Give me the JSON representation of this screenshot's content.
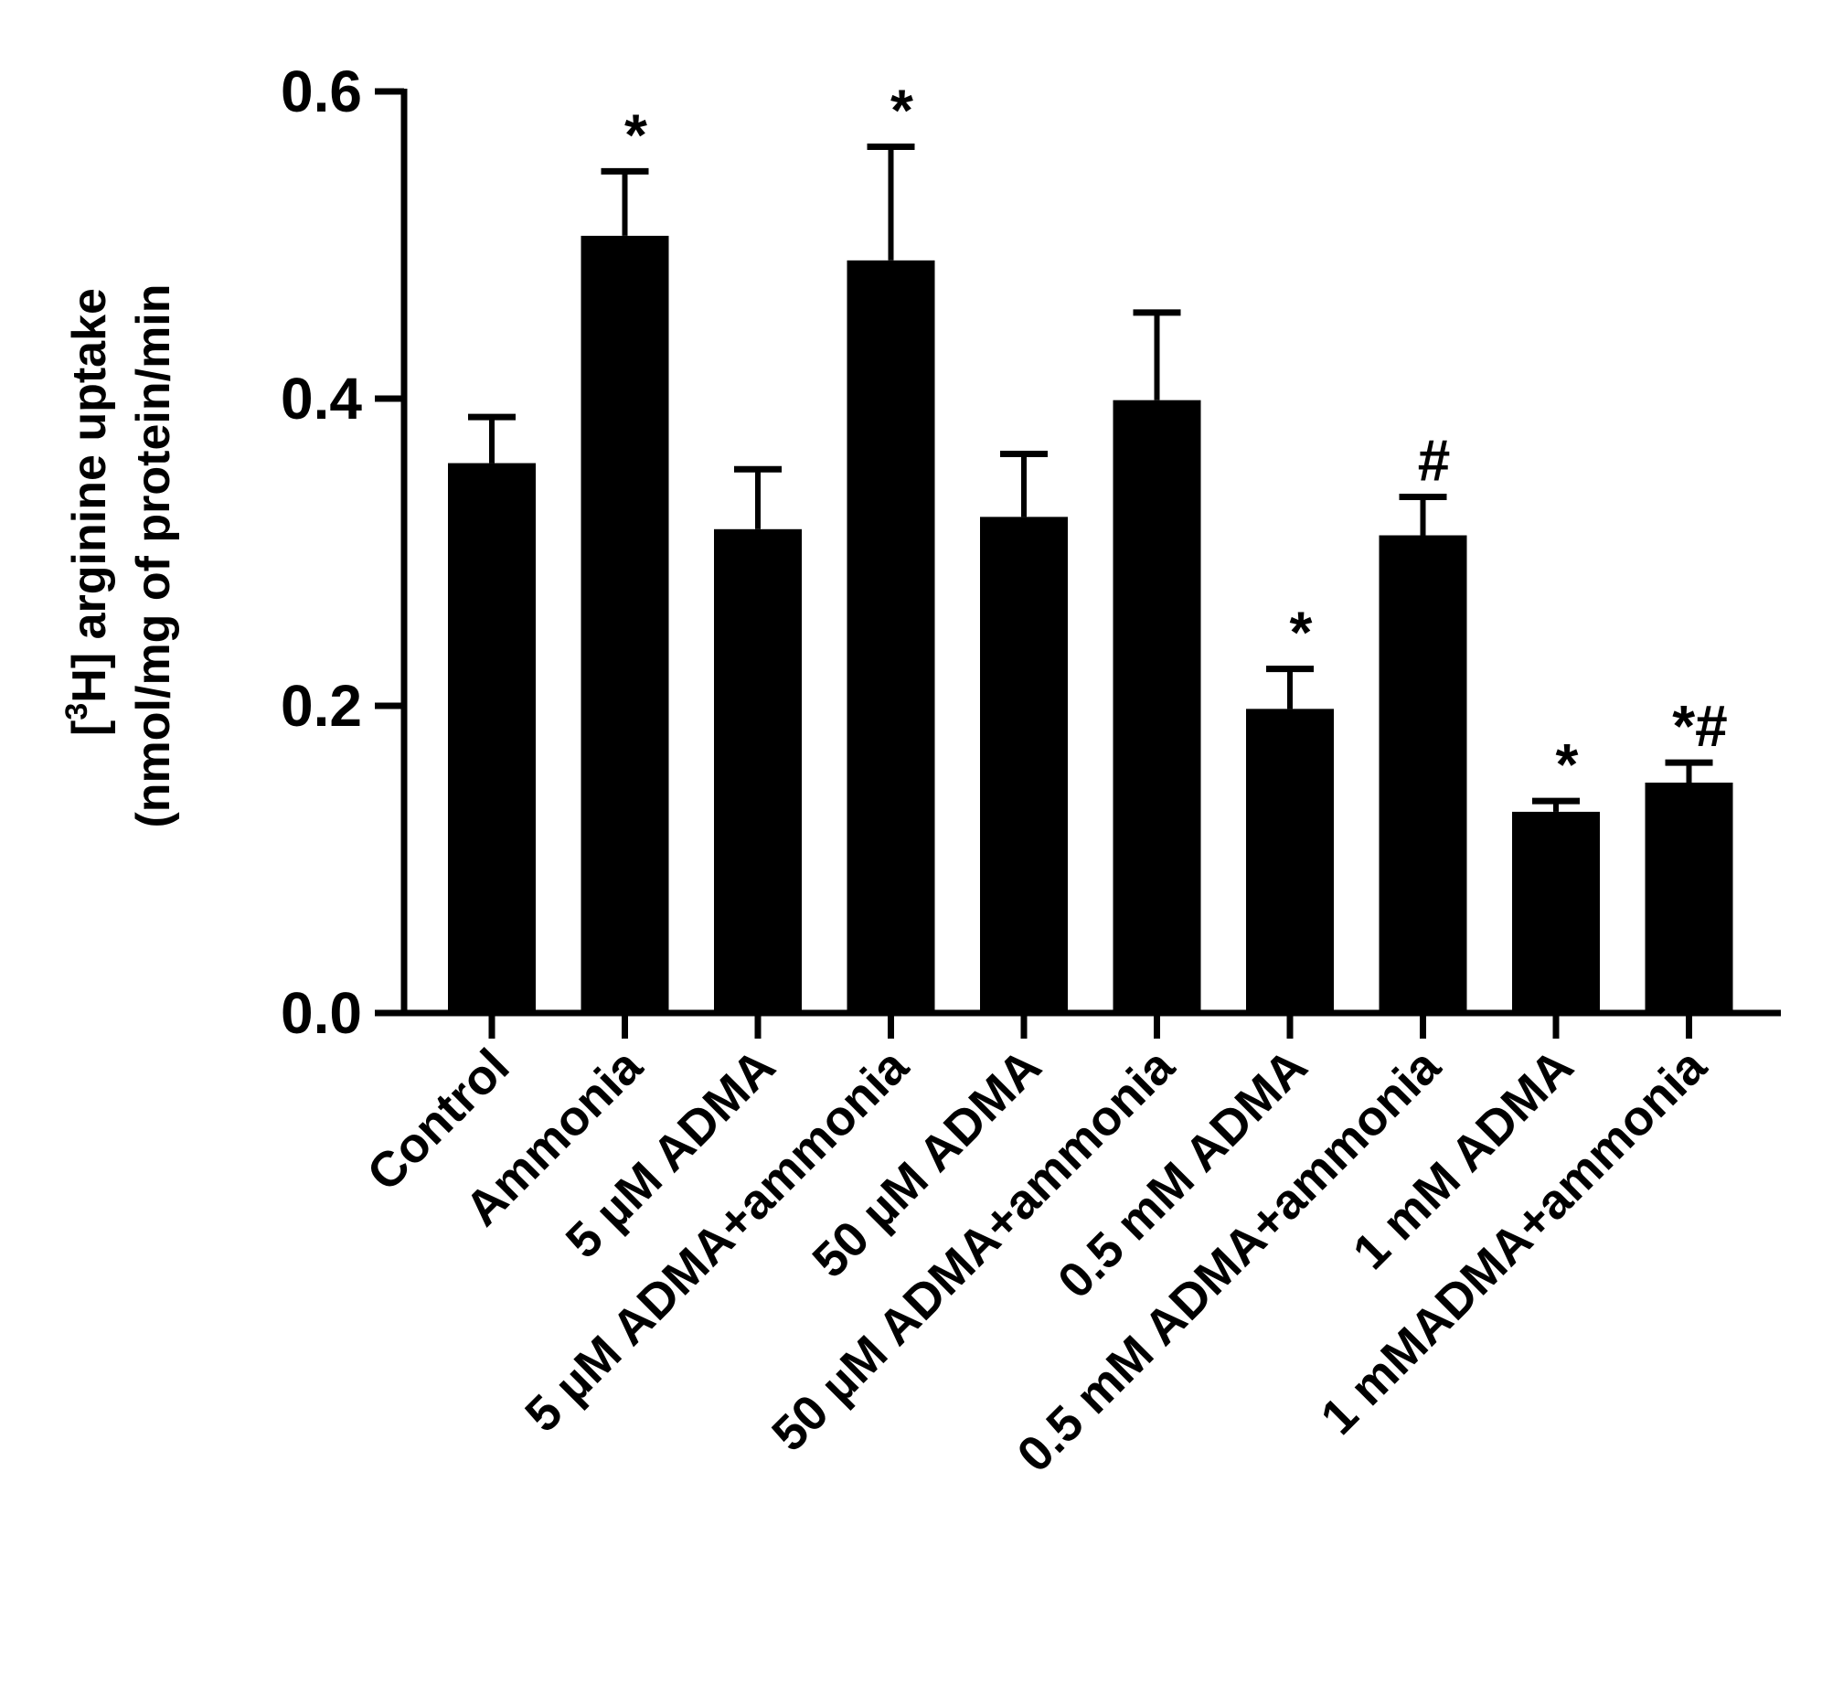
{
  "chart_data": {
    "type": "bar",
    "title": "",
    "xlabel": "",
    "ylabel_parts": [
      "[",
      "3",
      "H] arginine uptake"
    ],
    "ylabel_line2": "(nmol/mg of protein/min",
    "ylim": [
      0,
      0.6
    ],
    "yticks": [
      "0.0",
      "0.2",
      "0.4",
      "0.6"
    ],
    "ytick_values": [
      0,
      0.2,
      0.4,
      0.6
    ],
    "categories": [
      "Control",
      "Ammonia",
      "5 µM ADMA",
      "5 µM ADMA+ammonia",
      "50 µM ADMA",
      "50 µM ADMA+ammonia",
      "0.5 mM ADMA",
      "0.5 mM ADMA+ammonia",
      "1 mM ADMA",
      "1 mMADMA+ammonia"
    ],
    "values": [
      0.358,
      0.506,
      0.315,
      0.49,
      0.323,
      0.399,
      0.198,
      0.311,
      0.131,
      0.15
    ],
    "errors": [
      0.03,
      0.042,
      0.039,
      0.074,
      0.041,
      0.057,
      0.026,
      0.025,
      0.007,
      0.013
    ],
    "annotations": [
      "",
      "*",
      "",
      "*",
      "",
      "",
      "*",
      "#",
      "*",
      "*#"
    ],
    "bar_color": "#000000"
  }
}
